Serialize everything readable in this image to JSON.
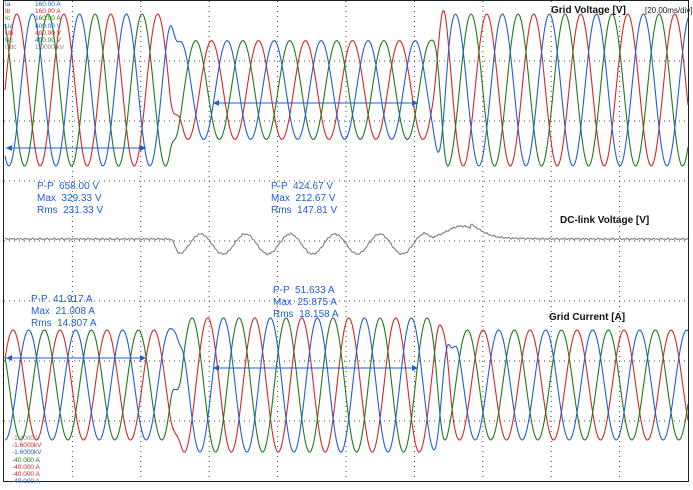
{
  "chart_data": {
    "type": "line",
    "time_div": "[20.00ms/div]",
    "panels": [
      {
        "title": "Grid Voltage [V]",
        "series": [
          {
            "color": "#d22828"
          },
          {
            "color": "#1f7a1f"
          },
          {
            "color": "#1f5fd1"
          }
        ],
        "measurements": [
          {
            "pp": "P-P  658.00 V",
            "max": "Max  329.33 V",
            "rms": "Rms  231.33 V"
          },
          {
            "pp": "P-P  424.67 V",
            "max": "Max  212.67 V",
            "rms": "Rms  147.81 V"
          }
        ]
      },
      {
        "title": "DC-link Voltage [V]",
        "series": [
          {
            "color": "#808080"
          }
        ]
      },
      {
        "title": "Grid Current [A]",
        "series": [
          {
            "color": "#d22828"
          },
          {
            "color": "#1f7a1f"
          },
          {
            "color": "#1f5fd1"
          }
        ],
        "measurements": [
          {
            "pp": "P-P  41.917 A",
            "max": "Max  21.008 A",
            "rms": "Rms  14.807 A"
          },
          {
            "pp": "P-P  51.633 A",
            "max": "Max  25.875 A",
            "rms": "Rms  18.158 A"
          }
        ]
      }
    ],
    "channels_top": [
      {
        "name": "Ia",
        "value": "160.00 A",
        "color": "#1f5fd1"
      },
      {
        "name": "Ib",
        "value": "160.00 A",
        "color": "#d22828"
      },
      {
        "name": "Ic",
        "value": "160.00 A",
        "color": "#1f7a1f"
      },
      {
        "name": "Ua",
        "value": "400.00 V",
        "color": "#1f5fd1"
      },
      {
        "name": "Ub",
        "value": "400.00 V",
        "color": "#d22828"
      },
      {
        "name": "Uc",
        "value": "400.00 V",
        "color": "#1f7a1f"
      },
      {
        "name": "Udc",
        "value": "1.0000 kV",
        "color": "#808080"
      }
    ],
    "channels_bottom": [
      {
        "value": "-1.3000 V",
        "color": "#808080"
      },
      {
        "value": "-1.6000kV",
        "color": "#d22828"
      },
      {
        "value": "-1.6000kV",
        "color": "#1f5fd1"
      },
      {
        "value": "-40.000 A",
        "color": "#1f7a1f"
      },
      {
        "value": "-40.000 A",
        "color": "#d22828"
      },
      {
        "value": "-40.000 A",
        "color": "#d22828"
      },
      {
        "value": "-40.000 A",
        "color": "#1f5fd1"
      }
    ]
  }
}
